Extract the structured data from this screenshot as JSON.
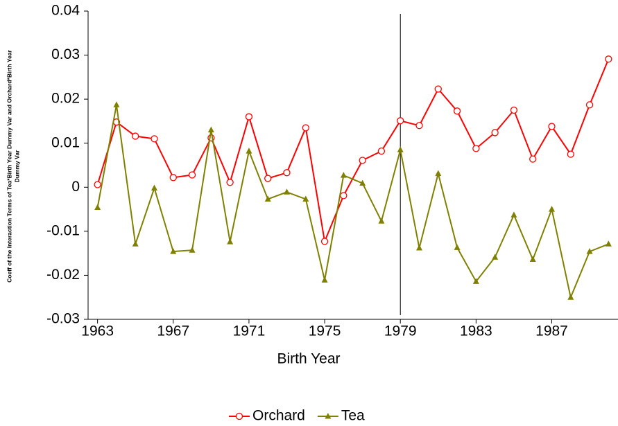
{
  "chart_data": {
    "type": "line",
    "xlabel": "Birth Year",
    "ylabel": [
      "Coeff of the Interaction Terms of Tea*Birth Year Dummy Var and Orchard*Birth Year",
      "Dummy Var"
    ],
    "x": [
      1963,
      1964,
      1965,
      1966,
      1967,
      1968,
      1969,
      1970,
      1971,
      1972,
      1973,
      1974,
      1975,
      1976,
      1977,
      1978,
      1979,
      1980,
      1981,
      1982,
      1983,
      1984,
      1985,
      1986,
      1987,
      1988,
      1989,
      1990
    ],
    "series": [
      {
        "name": "Orchard",
        "color": "#ff0000",
        "marker": "circle",
        "values": [
          0.0006,
          0.0148,
          0.0116,
          0.011,
          0.0022,
          0.0028,
          0.0112,
          0.0011,
          0.016,
          0.002,
          0.0033,
          0.0135,
          -0.0123,
          -0.0019,
          0.0061,
          0.0082,
          0.0151,
          0.014,
          0.0223,
          0.0173,
          0.0088,
          0.0124,
          0.0175,
          0.0064,
          0.0138,
          0.0075,
          0.0187,
          0.0291
        ]
      },
      {
        "name": "Tea",
        "color": "#808000",
        "marker": "triangle",
        "values": [
          -0.0046,
          0.0187,
          -0.0129,
          -0.0002,
          -0.0146,
          -0.0143,
          0.013,
          -0.0124,
          0.0082,
          -0.0027,
          -0.0011,
          -0.0027,
          -0.0211,
          0.0027,
          0.0009,
          -0.0077,
          0.0085,
          -0.0138,
          0.0031,
          -0.0137,
          -0.0214,
          -0.0159,
          -0.0063,
          -0.0164,
          -0.005,
          -0.025,
          -0.0146,
          -0.0129
        ]
      }
    ],
    "xlim": [
      1962.5,
      1990.5
    ],
    "xticks": [
      1963,
      1967,
      1971,
      1975,
      1979,
      1983,
      1987
    ],
    "ylim": [
      -0.03,
      0.04
    ],
    "yticks": [
      -0.03,
      -0.02,
      -0.01,
      0,
      0.01,
      0.02,
      0.03,
      0.04
    ],
    "vline": 1979,
    "legend": "bottom",
    "grid": false
  }
}
